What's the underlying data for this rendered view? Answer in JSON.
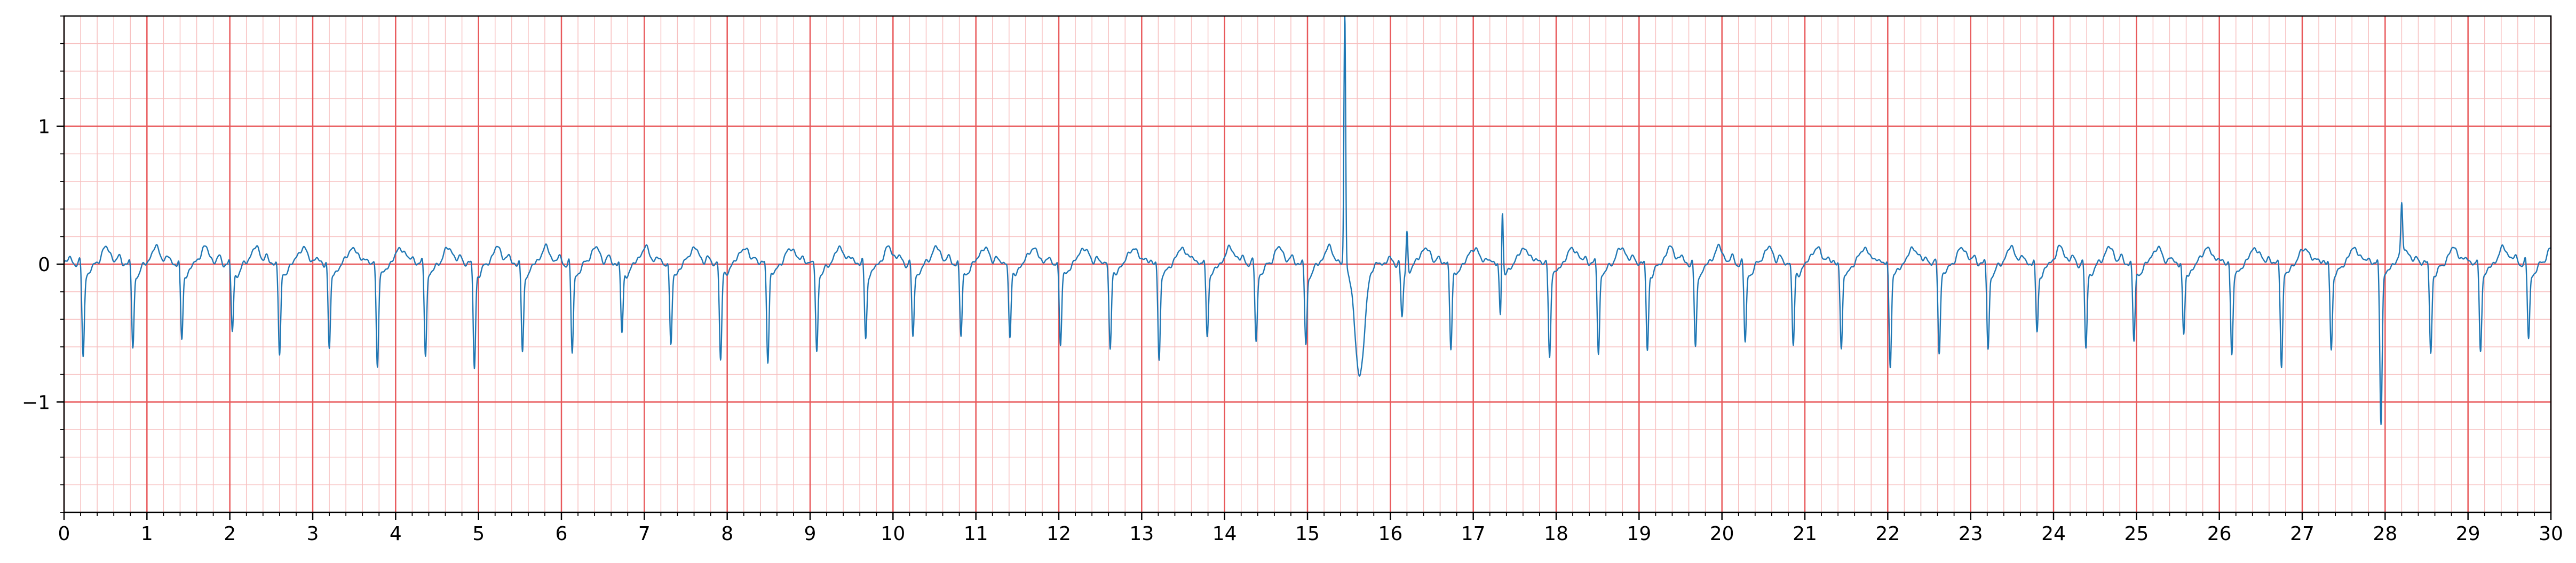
{
  "colors": {
    "major_grid": "#e8595b",
    "minor_grid": "#f7c0c0",
    "trace": "#1f77b4",
    "axis": "#000000",
    "background": "#ffffff"
  },
  "chart_data": {
    "type": "line",
    "title": "",
    "xlabel": "",
    "ylabel": "",
    "xlim": [
      0,
      30
    ],
    "ylim": [
      -1.8,
      1.8
    ],
    "grid": true,
    "grid_major": {
      "x": 1,
      "y": 1
    },
    "grid_minor": {
      "x": 0.2,
      "y": 0.2
    },
    "xticks": [
      0,
      1,
      2,
      3,
      4,
      5,
      6,
      7,
      8,
      9,
      10,
      11,
      12,
      13,
      14,
      15,
      16,
      17,
      18,
      19,
      20,
      21,
      22,
      23,
      24,
      25,
      26,
      27,
      28,
      29,
      30
    ],
    "xtick_labels": [
      "0",
      "1",
      "2",
      "3",
      "4",
      "5",
      "6",
      "7",
      "8",
      "9",
      "10",
      "11",
      "12",
      "13",
      "14",
      "15",
      "16",
      "17",
      "18",
      "19",
      "20",
      "21",
      "22",
      "23",
      "24",
      "25",
      "26",
      "27",
      "28",
      "29",
      "30"
    ],
    "yticks": [
      1,
      0,
      -1
    ],
    "ytick_labels": [
      "1",
      "0",
      "−1"
    ],
    "series": [
      {
        "baseline": 0.0,
        "beats": [
          {
            "t": 0.23,
            "r": -0.63
          },
          {
            "t": 0.83,
            "r": -0.58
          },
          {
            "t": 1.42,
            "r": -0.52
          },
          {
            "t": 2.03,
            "r": -0.45
          },
          {
            "t": 2.6,
            "r": -0.63
          },
          {
            "t": 3.2,
            "r": -0.58
          },
          {
            "t": 3.78,
            "r": -0.7
          },
          {
            "t": 4.36,
            "r": -0.61
          },
          {
            "t": 4.95,
            "r": -0.72
          },
          {
            "t": 5.53,
            "r": -0.62
          },
          {
            "t": 6.13,
            "r": -0.61
          },
          {
            "t": 6.73,
            "r": -0.47
          },
          {
            "t": 7.32,
            "r": -0.56
          },
          {
            "t": 7.92,
            "r": -0.66
          },
          {
            "t": 8.49,
            "r": -0.66
          },
          {
            "t": 9.08,
            "r": -0.6
          },
          {
            "t": 9.67,
            "r": -0.5
          },
          {
            "t": 10.24,
            "r": -0.5
          },
          {
            "t": 10.82,
            "r": -0.48
          },
          {
            "t": 11.41,
            "r": -0.5
          },
          {
            "t": 12.02,
            "r": -0.55
          },
          {
            "t": 12.62,
            "r": -0.58
          },
          {
            "t": 13.21,
            "r": -0.66
          },
          {
            "t": 13.79,
            "r": -0.48
          },
          {
            "t": 14.38,
            "r": -0.52
          },
          {
            "t": 14.98,
            "r": -0.56
          },
          {
            "t": 16.14,
            "r": -0.35
          },
          {
            "t": 16.73,
            "r": -0.57
          },
          {
            "t": 17.33,
            "r": -0.38
          },
          {
            "t": 17.92,
            "r": -0.63
          },
          {
            "t": 18.51,
            "r": -0.6
          },
          {
            "t": 19.1,
            "r": -0.59
          },
          {
            "t": 19.68,
            "r": -0.58
          },
          {
            "t": 20.28,
            "r": -0.53
          },
          {
            "t": 20.86,
            "r": -0.56
          },
          {
            "t": 21.44,
            "r": -0.58
          },
          {
            "t": 22.03,
            "r": -0.7
          },
          {
            "t": 22.62,
            "r": -0.6
          },
          {
            "t": 23.21,
            "r": -0.58
          },
          {
            "t": 23.8,
            "r": -0.46
          },
          {
            "t": 24.39,
            "r": -0.58
          },
          {
            "t": 24.97,
            "r": -0.52
          },
          {
            "t": 25.57,
            "r": -0.48
          },
          {
            "t": 26.15,
            "r": -0.62
          },
          {
            "t": 26.75,
            "r": -0.7
          },
          {
            "t": 27.35,
            "r": -0.58
          },
          {
            "t": 27.95,
            "r": -1.1
          },
          {
            "t": 28.55,
            "r": -0.6
          },
          {
            "t": 29.15,
            "r": -0.59
          },
          {
            "t": 29.73,
            "r": -0.5
          }
        ],
        "events": [
          {
            "t": 15.45,
            "peak": 1.85,
            "trough": -0.8
          },
          {
            "t": 16.2,
            "peak": 0.3
          },
          {
            "t": 17.35,
            "peak": 0.55
          },
          {
            "t": 28.2,
            "peak": 0.32
          }
        ]
      }
    ]
  }
}
